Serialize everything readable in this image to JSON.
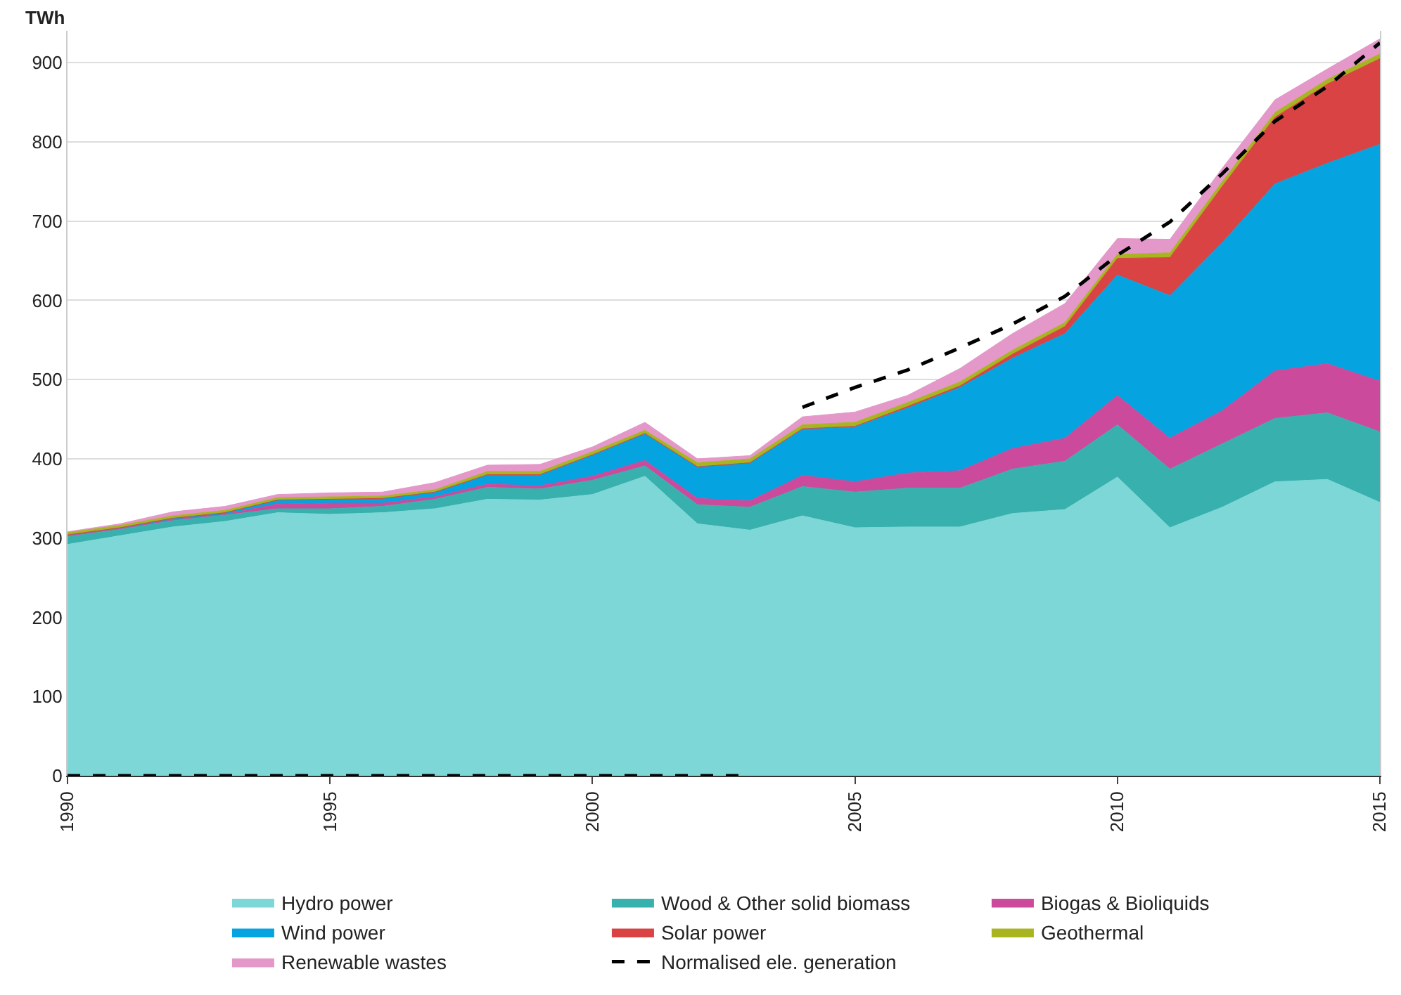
{
  "chart_data": {
    "type": "area",
    "stacked": true,
    "ylabel": "TWh",
    "x": [
      1990,
      1991,
      1992,
      1993,
      1994,
      1995,
      1996,
      1997,
      1998,
      1999,
      2000,
      2001,
      2002,
      2003,
      2004,
      2005,
      2006,
      2007,
      2008,
      2009,
      2010,
      2011,
      2012,
      2013,
      2014,
      2015
    ],
    "xlim": [
      1990,
      2015
    ],
    "xticks": [
      1990,
      1995,
      2000,
      2005,
      2010,
      2015
    ],
    "ylim": [
      0,
      940
    ],
    "yticks": [
      0,
      100,
      200,
      300,
      400,
      500,
      600,
      700,
      800,
      900
    ],
    "grid": "y",
    "legend": "bottom",
    "series": [
      {
        "name": "Hydro power",
        "color": "#7dd7d6",
        "values": [
          292,
          303,
          314,
          321,
          332,
          330,
          332,
          337,
          349,
          348,
          355,
          378,
          318,
          310,
          328,
          313,
          314,
          314,
          331,
          336,
          377,
          313,
          339,
          371,
          374,
          345
        ]
      },
      {
        "name": "Wood & Other solid biomass",
        "color": "#38b0ad",
        "values": [
          10,
          8,
          8,
          8,
          5,
          7,
          8,
          12,
          15,
          14,
          18,
          13,
          24,
          29,
          37,
          45,
          49,
          49,
          56,
          61,
          66,
          74,
          80,
          80,
          84,
          89
        ]
      },
      {
        "name": "Biogas & Bioliquids",
        "color": "#cc4a9c",
        "values": [
          1,
          1,
          1,
          1,
          6,
          7,
          4,
          3,
          4,
          4,
          5,
          7,
          8,
          8,
          14,
          13,
          19,
          22,
          26,
          29,
          37,
          39,
          42,
          60,
          62,
          64
        ]
      },
      {
        "name": "Wind power",
        "color": "#05a3e0",
        "values": [
          1,
          1,
          2,
          2,
          5,
          5,
          6,
          6,
          12,
          14,
          27,
          34,
          40,
          48,
          58,
          69,
          82,
          105,
          114,
          132,
          152,
          180,
          212,
          236,
          253,
          299
        ]
      },
      {
        "name": "Solar power",
        "color": "#d94343",
        "values": [
          0,
          0,
          0,
          0,
          0,
          0,
          0,
          0,
          0,
          0,
          0,
          0,
          0,
          0,
          1,
          1,
          2,
          2,
          5,
          9,
          21,
          48,
          71,
          84,
          100,
          108
        ]
      },
      {
        "name": "Geothermal",
        "color": "#a8b520",
        "values": [
          3,
          3,
          3,
          3,
          3,
          3,
          3,
          3,
          4,
          4,
          4,
          4,
          5,
          5,
          5,
          5,
          5,
          5,
          5,
          5,
          5,
          6,
          6,
          6,
          6,
          6
        ]
      },
      {
        "name": "Renewable wastes",
        "color": "#e398c9",
        "values": [
          1,
          2,
          5,
          5,
          4,
          5,
          5,
          9,
          8,
          9,
          6,
          10,
          5,
          4,
          10,
          13,
          9,
          17,
          21,
          24,
          20,
          17,
          17,
          16,
          13,
          19
        ]
      },
      {
        "name": "Normalised ele. generation",
        "type": "line",
        "line_style": "dashed",
        "color": "#000000",
        "x": [
          2004,
          2005,
          2006,
          2007,
          2008,
          2009,
          2010,
          2011,
          2012,
          2013,
          2014,
          2015
        ],
        "values": [
          465,
          490,
          512,
          540,
          570,
          605,
          657,
          699,
          760,
          826,
          870,
          925
        ]
      },
      {
        "type": "line",
        "line_style": "dashed",
        "color": "#000000",
        "x": [
          1990,
          1991,
          1992,
          1993,
          1994,
          1995,
          1996,
          1997,
          1998,
          1999,
          2000,
          2001,
          2002,
          2003
        ],
        "values": [
          0,
          0,
          0,
          0,
          0,
          0,
          0,
          0,
          0,
          0,
          0,
          0,
          0,
          0
        ]
      }
    ]
  }
}
